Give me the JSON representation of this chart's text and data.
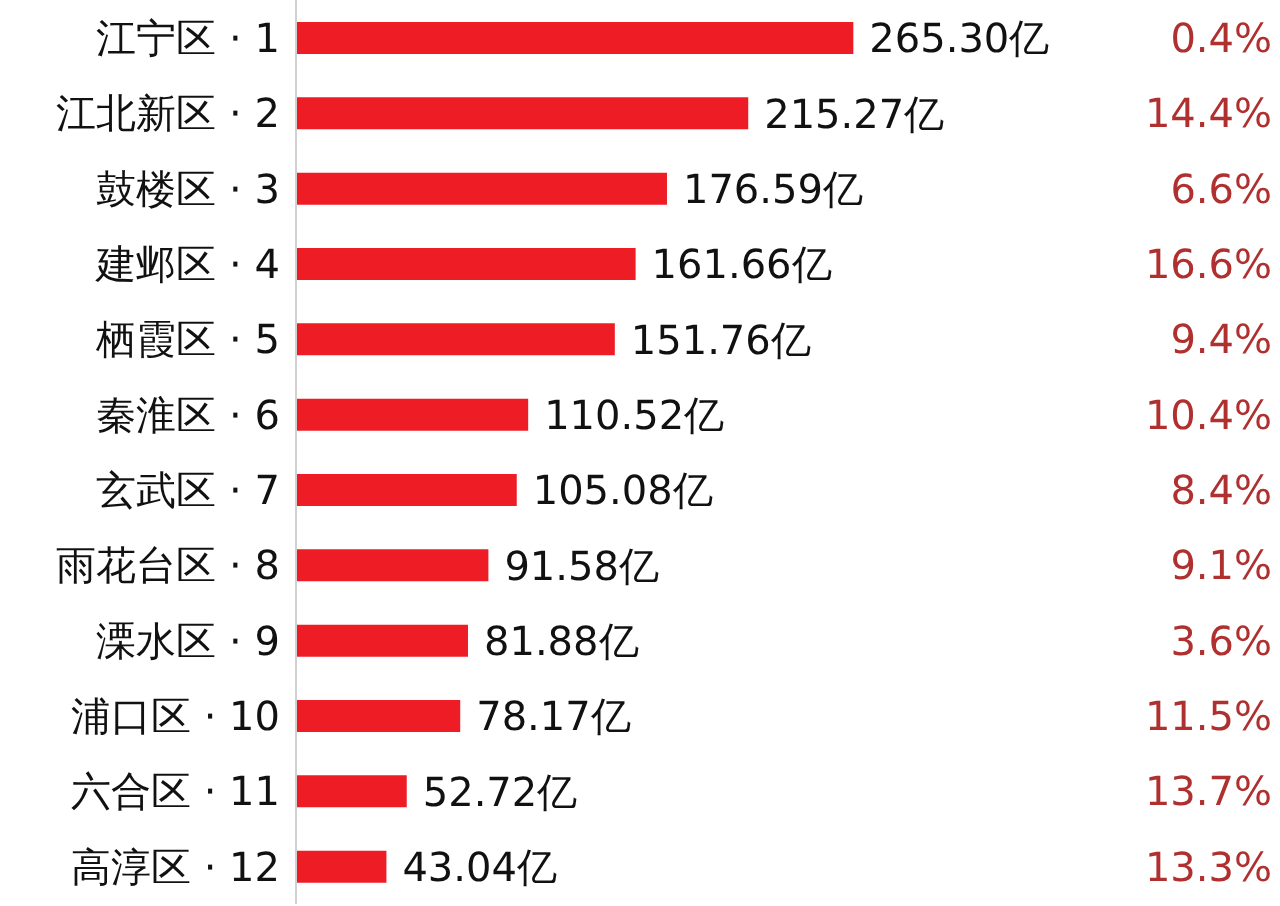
{
  "chart_data": {
    "type": "bar",
    "orientation": "horizontal",
    "categories": [
      "江宁区 · 1",
      "江北新区 · 2",
      "鼓楼区 · 3",
      "建邺区 · 4",
      "栖霞区 · 5",
      "秦淮区 · 6",
      "玄武区 · 7",
      "雨花台区 · 8",
      "溧水区 · 9",
      "浦口区 · 10",
      "六合区 · 11",
      "高淳区 · 12"
    ],
    "values": [
      265.3,
      215.27,
      176.59,
      161.66,
      151.76,
      110.52,
      105.08,
      91.58,
      81.88,
      78.17,
      52.72,
      43.04
    ],
    "value_labels": [
      "265.30亿",
      "215.27亿",
      "176.59亿",
      "161.66亿",
      "151.76亿",
      "110.52亿",
      "105.08亿",
      "91.58亿",
      "81.88亿",
      "78.17亿",
      "52.72亿",
      "43.04亿"
    ],
    "color": "#ee1c25",
    "tick_labels": "y",
    "annotations": [
      "0.4%",
      "14.4%",
      "6.6%",
      "16.6%",
      "9.4%",
      "10.4%",
      "8.4%",
      "9.1%",
      "3.6%",
      "11.5%",
      "13.7%",
      "13.3%"
    ]
  }
}
